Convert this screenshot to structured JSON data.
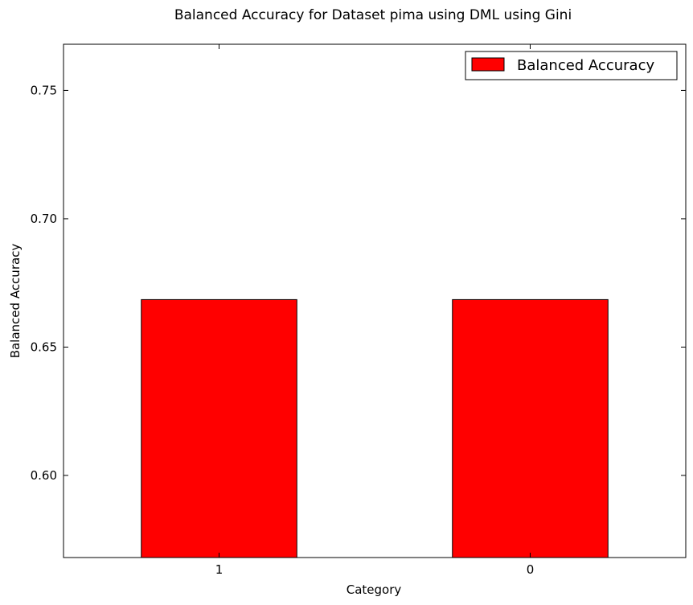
{
  "chart_data": {
    "type": "bar",
    "title": "Balanced Accuracy for Dataset pima using DML using Gini",
    "xlabel": "Category",
    "ylabel": "Balanced Accuracy",
    "categories": [
      "1",
      "0"
    ],
    "series": [
      {
        "name": "Balanced Accuracy",
        "values": [
          0.6685,
          0.6685
        ],
        "color": "#ff0000"
      }
    ],
    "ylim": [
      0.568,
      0.768
    ],
    "yticks": [
      "0.60",
      "0.65",
      "0.70",
      "0.75"
    ],
    "ytick_values": [
      0.6,
      0.65,
      0.7,
      0.75
    ],
    "grid": false,
    "legend_position": "top-right"
  }
}
